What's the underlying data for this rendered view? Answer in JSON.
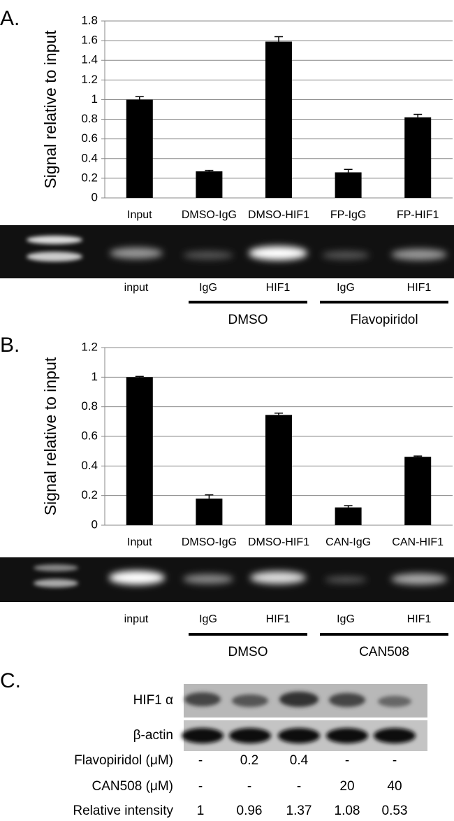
{
  "chart_data": [
    {
      "type": "bar",
      "panel_label": "A.",
      "ylabel": "Signal relative to input",
      "categories": [
        "Input",
        "DMSO-IgG",
        "DMSO-HIF1",
        "FP-IgG",
        "FP-HIF1"
      ],
      "values": [
        1.0,
        0.27,
        1.59,
        0.26,
        0.82
      ],
      "errors": [
        0.03,
        0.01,
        0.05,
        0.03,
        0.03
      ],
      "color": "#000000",
      "ylim": [
        0,
        1.8
      ],
      "yticks": [
        0,
        0.2,
        0.4,
        0.6,
        0.8,
        1,
        1.2,
        1.4,
        1.6,
        1.8
      ],
      "grid": true
    },
    {
      "type": "bar",
      "panel_label": "B.",
      "ylabel": "Signal relative to input",
      "categories": [
        "Input",
        "DMSO-IgG",
        "DMSO-HIF1",
        "CAN-IgG",
        "CAN-HIF1"
      ],
      "values": [
        1.0,
        0.18,
        0.745,
        0.12,
        0.462
      ],
      "errors": [
        0.005,
        0.025,
        0.012,
        0.012,
        0.005
      ],
      "color": "#000000",
      "ylim": [
        0,
        1.2
      ],
      "yticks": [
        0,
        0.2,
        0.4,
        0.6,
        0.8,
        1,
        1.2
      ],
      "grid": true
    }
  ],
  "gels": [
    {
      "lanes": [
        "input",
        "IgG",
        "HIF1",
        "IgG",
        "HIF1"
      ],
      "groups": [
        "DMSO",
        "Flavopiridol"
      ]
    },
    {
      "lanes": [
        "input",
        "IgG",
        "HIF1",
        "IgG",
        "HIF1"
      ],
      "groups": [
        "DMSO",
        "CAN508"
      ]
    }
  ],
  "blot": {
    "panel_label": "C.",
    "bands": [
      "HIF1 α",
      "β-actin"
    ],
    "rows": [
      {
        "label": "Flavopiridol (μM)",
        "values": [
          "-",
          "0.2",
          "0.4",
          "-",
          "-"
        ]
      },
      {
        "label": "CAN508 (μM)",
        "values": [
          "-",
          "-",
          "-",
          "20",
          "40"
        ]
      },
      {
        "label": "Relative intensity",
        "values": [
          1,
          0.96,
          1.37,
          1.08,
          0.53
        ]
      }
    ]
  }
}
